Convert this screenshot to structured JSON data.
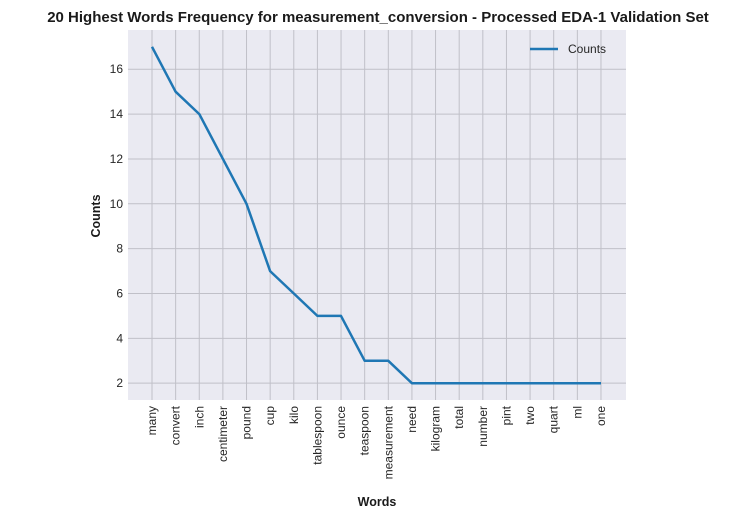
{
  "chart_data": {
    "type": "line",
    "title": "20 Highest Words Frequency for measurement_conversion - Processed EDA-1 Validation Set",
    "xlabel": "Words",
    "ylabel": "Counts",
    "categories": [
      "many",
      "convert",
      "inch",
      "centimeter",
      "pound",
      "cup",
      "kilo",
      "tablespoon",
      "ounce",
      "teaspoon",
      "measurement",
      "need",
      "kilogram",
      "total",
      "number",
      "pint",
      "two",
      "quart",
      "ml",
      "one"
    ],
    "series": [
      {
        "name": "Counts",
        "values": [
          17,
          15,
          14,
          12,
          10,
          7,
          6,
          5,
          5,
          3,
          3,
          2,
          2,
          2,
          2,
          2,
          2,
          2,
          2,
          2
        ]
      }
    ],
    "ylim": [
      1.25,
      17.75
    ],
    "yticks": [
      2,
      4,
      6,
      8,
      10,
      12,
      14,
      16
    ],
    "grid": true,
    "legend": "top-right",
    "colors": {
      "line": "#1f77b4",
      "background": "#eaeaf2",
      "grid": "#c0c0c8"
    }
  }
}
